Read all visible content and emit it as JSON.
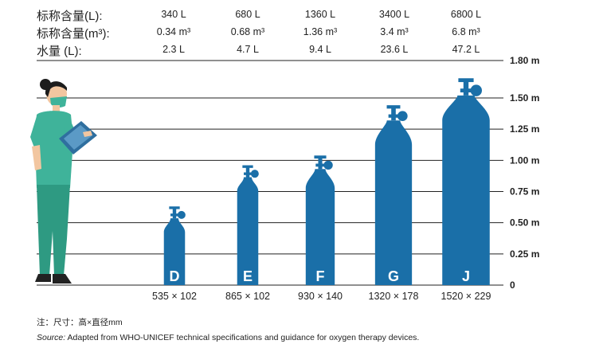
{
  "header_rows": [
    {
      "label": "标称含量(L):",
      "values": [
        "340 L",
        "680 L",
        "1360 L",
        "3400 L",
        "6800 L"
      ]
    },
    {
      "label": "标称含量(m³):",
      "values": [
        "0.34 m³",
        "0.68 m³",
        "1.36 m³",
        "3.4 m³",
        "6.8 m³"
      ]
    },
    {
      "label": "水量 (L):",
      "values": [
        "2.3 L",
        "4.7 L",
        "9.4 L",
        "23.6 L",
        "47.2 L"
      ]
    }
  ],
  "height_scale": {
    "unit": "m",
    "ticks": [
      {
        "value": 0,
        "label": "0"
      },
      {
        "value": 0.25,
        "label": "0.25 m"
      },
      {
        "value": 0.5,
        "label": "0.50 m"
      },
      {
        "value": 0.75,
        "label": "0.75 m"
      },
      {
        "value": 1.0,
        "label": "1.00 m"
      },
      {
        "value": 1.25,
        "label": "1.25 m"
      },
      {
        "value": 1.5,
        "label": "1.50 m"
      },
      {
        "value": 1.8,
        "label": "1.80 m"
      }
    ]
  },
  "cylinders": [
    {
      "size": "D",
      "height_mm": 535,
      "diameter_mm": 102,
      "dimension_label": "535 × 102"
    },
    {
      "size": "E",
      "height_mm": 865,
      "diameter_mm": 102,
      "dimension_label": "865 × 102"
    },
    {
      "size": "F",
      "height_mm": 930,
      "diameter_mm": 140,
      "dimension_label": "930 × 140"
    },
    {
      "size": "G",
      "height_mm": 1320,
      "diameter_mm": 178,
      "dimension_label": "1320 × 178"
    },
    {
      "size": "J",
      "height_mm": 1520,
      "diameter_mm": 229,
      "dimension_label": "1520 × 229"
    }
  ],
  "colors": {
    "cylinder": "#1a6fa8",
    "scrub": "#3fb39a",
    "scrub_dark": "#2e9a82",
    "skin": "#f2c6a0",
    "hair": "#1c1c1c",
    "clipboard": "#2f6f9f",
    "shoe": "#222222",
    "line": "#222222",
    "cylinder_letter": "#ffffff"
  },
  "note": "注：尺寸：高×直径mm",
  "source": {
    "label": "Source:",
    "text": " Adapted from WHO-UNICEF technical specifications and guidance for oxygen therapy devices."
  }
}
